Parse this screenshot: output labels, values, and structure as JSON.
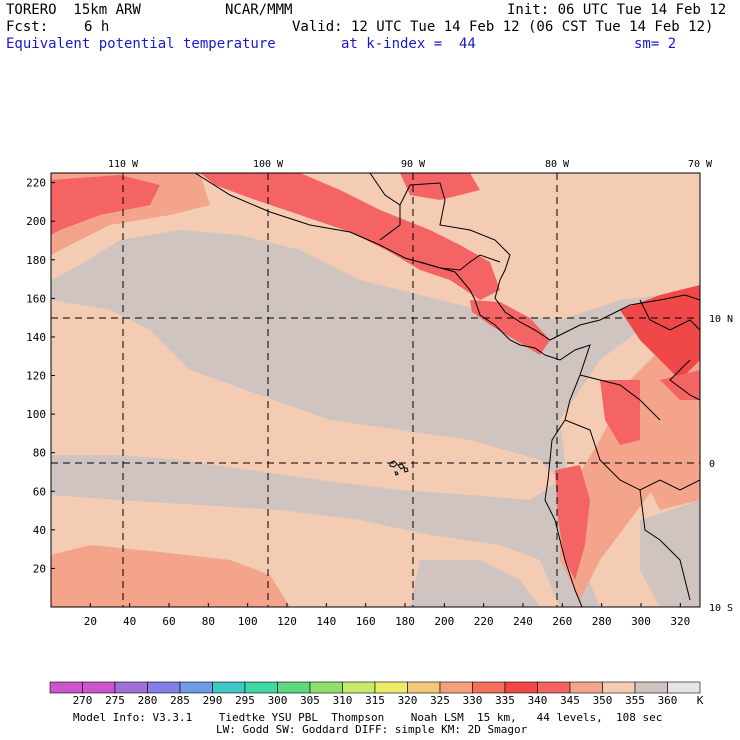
{
  "header": {
    "model": "TORERO  15km ARW",
    "center": "NCAR/MMM",
    "init": "Init: 06 UTC Tue 14 Feb 12",
    "fcst_label": "Fcst:",
    "fcst_hours": "6 h",
    "valid": "Valid: 12 UTC Tue 14 Feb 12 (06 CST Tue 14 Feb 12)",
    "field": "Equivalent potential temperature",
    "level": "at k-index =  44",
    "smoothing": "sm= 2"
  },
  "map": {
    "top_lon_labels": [
      "110 W",
      "100 W",
      "90 W",
      "80 W",
      "70 W"
    ],
    "right_lat_labels": [
      "10 N",
      "0",
      "10 S"
    ],
    "y_ticks": [
      "220",
      "200",
      "180",
      "160",
      "140",
      "120",
      "100",
      "80",
      "60",
      "40",
      "20"
    ],
    "x_ticks": [
      "20",
      "40",
      "60",
      "80",
      "100",
      "120",
      "140",
      "160",
      "180",
      "200",
      "220",
      "240",
      "260",
      "280",
      "300",
      "320"
    ]
  },
  "colorbar": {
    "labels": [
      "270",
      "275",
      "280",
      "285",
      "290",
      "295",
      "300",
      "305",
      "310",
      "315",
      "320",
      "325",
      "330",
      "335",
      "340",
      "345",
      "350",
      "355",
      "360"
    ],
    "unit": "K",
    "colors": [
      "#cc55cc",
      "#a070d8",
      "#7f7fe6",
      "#6f9ae6",
      "#3fc6c6",
      "#3fd7a7",
      "#5fd77f",
      "#8fe06a",
      "#c8ea6a",
      "#ecec6a",
      "#f4c87a",
      "#f4a07a",
      "#f4705a",
      "#f04848",
      "#f46464",
      "#f4a48a",
      "#f4ccb4",
      "#d0c4c0",
      "#e8e4e4"
    ]
  },
  "footer": {
    "line1": "Model Info: V3.3.1    Tiedtke YSU PBL  Thompson    Noah LSM  15 km,   44 levels,  108 sec",
    "line2": "LW: Godd SW: Goddard DIFF: simple KM: 2D Smagor"
  }
}
